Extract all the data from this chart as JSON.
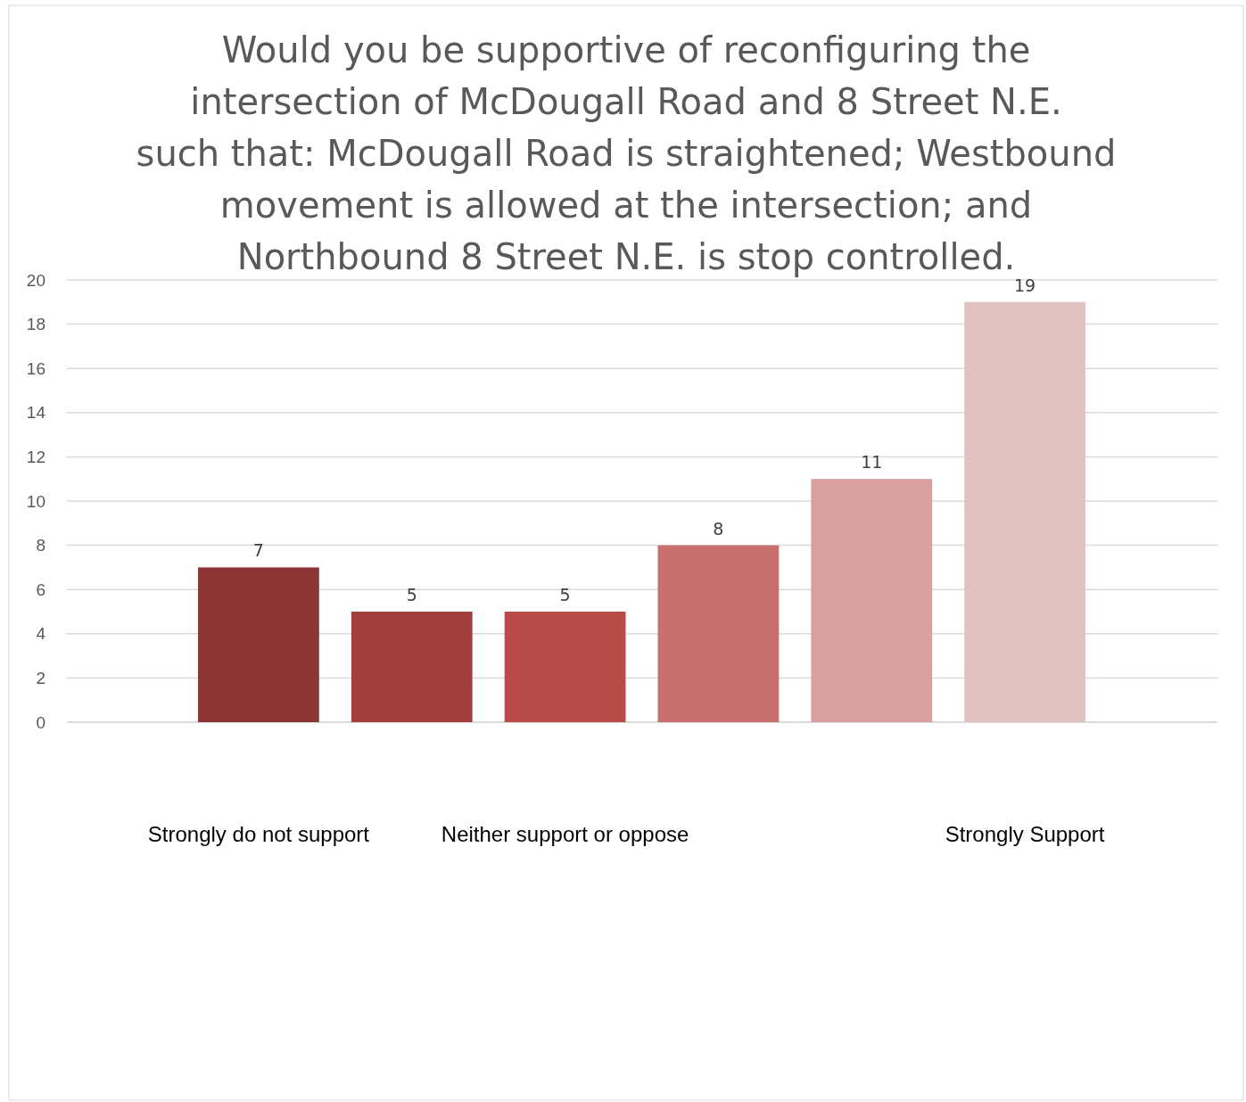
{
  "chart_data": {
    "type": "bar",
    "title": "Would you be supportive of reconfiguring the intersection of McDougall Road and 8 Street N.E. such that: McDougall Road is straightened; Westbound movement is allowed at the intersection; and Northbound 8 Street N.E. is stop controlled.",
    "categories": [
      "Strongly do not support",
      null,
      "Neither support or oppose",
      null,
      null,
      "Strongly Support"
    ],
    "values": [
      7,
      5,
      5,
      8,
      11,
      19
    ],
    "colors": [
      "#8b3634",
      "#a33f3c",
      "#b84c49",
      "#c8706e",
      "#d8a0a0",
      "#e2c1c3"
    ],
    "ylim": [
      0,
      20
    ],
    "yticks": [
      0,
      2,
      4,
      6,
      8,
      10,
      12,
      14,
      16,
      18,
      20
    ],
    "grid": "y",
    "data_labels": true
  }
}
